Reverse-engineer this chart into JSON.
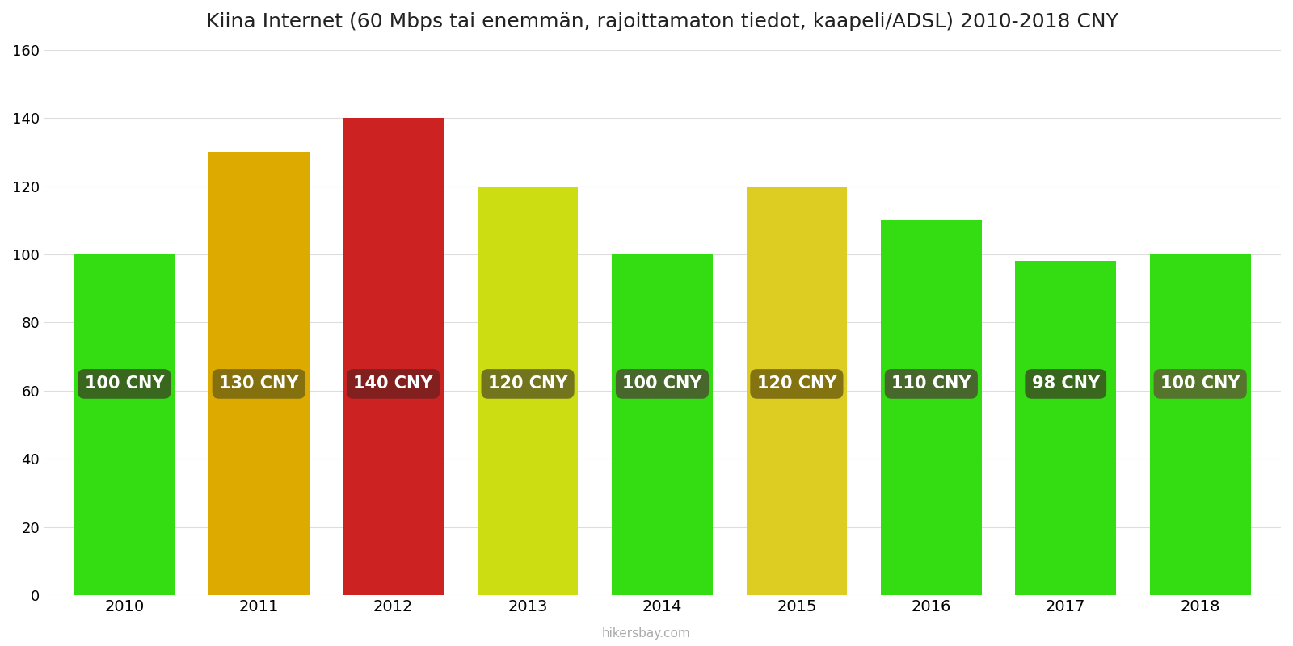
{
  "title": "Kiina Internet (60 Mbps tai enemmän, rajoittamaton tiedot, kaapeli/ADSL) 2010-2018 CNY",
  "years": [
    2010,
    2011,
    2012,
    2013,
    2014,
    2015,
    2016,
    2017,
    2018
  ],
  "values": [
    100,
    130,
    140,
    120,
    100,
    120,
    110,
    98,
    100
  ],
  "labels": [
    "100 CNY",
    "130 CNY",
    "140 CNY",
    "120 CNY",
    "100 CNY",
    "120 CNY",
    "110 CNY",
    "98 CNY",
    "100 CNY"
  ],
  "bar_colors": [
    "#33dd11",
    "#ddaa00",
    "#cc2222",
    "#ccdd11",
    "#33dd11",
    "#ddcc22",
    "#33dd11",
    "#33dd11",
    "#33dd11"
  ],
  "label_bg_colors": [
    "#3a5a20",
    "#7a6a10",
    "#7a2020",
    "#6a6a20",
    "#4a5a30",
    "#7a6a10",
    "#4a5a30",
    "#3a5a20",
    "#5a6a30"
  ],
  "ylim": [
    0,
    160
  ],
  "yticks": [
    0,
    20,
    40,
    60,
    80,
    100,
    120,
    140,
    160
  ],
  "watermark": "hikersbay.com",
  "background_color": "#ffffff",
  "title_fontsize": 18,
  "label_fontsize": 15,
  "bar_width": 0.75
}
